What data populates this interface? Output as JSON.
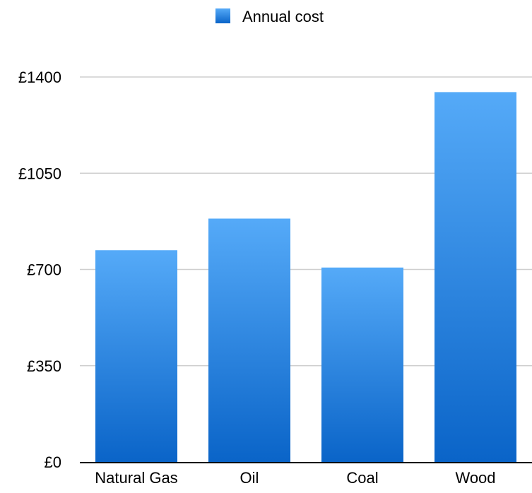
{
  "chart_data": {
    "type": "bar",
    "categories": [
      "Natural Gas",
      "Oil",
      "Coal",
      "Wood"
    ],
    "series": [
      {
        "name": "Annual cost",
        "values": [
          770,
          885,
          707,
          1345
        ],
        "color": "#2a84e0"
      }
    ],
    "ylim": [
      0,
      1400
    ],
    "yticks": [
      {
        "value": 0,
        "label": "£0"
      },
      {
        "value": 350,
        "label": "£350"
      },
      {
        "value": 700,
        "label": "£700"
      },
      {
        "value": 1050,
        "label": "£1050"
      },
      {
        "value": 1400,
        "label": "£1400"
      }
    ],
    "grid": true,
    "legend_position": "top-center",
    "colors": {
      "bar_top": "#55aaf8",
      "bar_bottom": "#0a64c8",
      "grid": "#cfcfcf",
      "axis": "#000000"
    }
  }
}
